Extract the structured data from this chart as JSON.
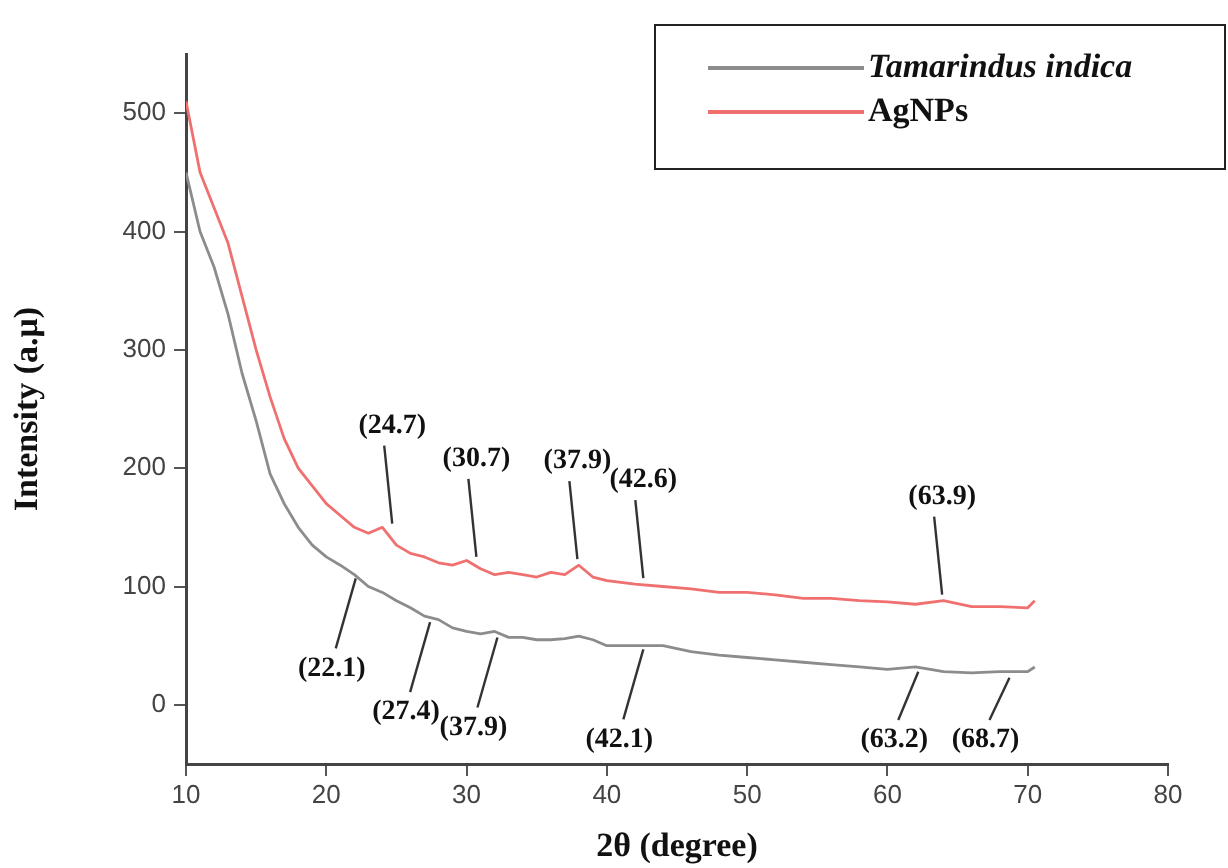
{
  "chart_data": {
    "type": "line",
    "xlabel": "2θ (degree)",
    "ylabel": "Intensity (a.μ)",
    "xlim": [
      10,
      80
    ],
    "xticks": [
      10,
      20,
      30,
      40,
      50,
      60,
      70,
      80
    ],
    "ylim": [
      -50,
      550
    ],
    "yticks": [
      0,
      100,
      200,
      300,
      400,
      500
    ],
    "grid": false,
    "legend": "top right",
    "marker": "none",
    "line_style": "solid",
    "series": [
      {
        "name": "Tamarindus indica",
        "color": "#8c8c8c",
        "x": [
          10,
          11,
          12,
          13,
          14,
          15,
          16,
          17,
          18,
          19,
          20,
          21,
          22,
          23,
          24,
          25,
          26,
          27,
          28,
          29,
          30,
          31,
          32,
          33,
          34,
          35,
          36,
          37,
          38,
          39,
          40,
          42,
          44,
          46,
          48,
          50,
          52,
          54,
          56,
          58,
          60,
          62,
          64,
          66,
          68,
          70,
          70.5
        ],
        "values": [
          450,
          400,
          370,
          330,
          280,
          240,
          195,
          170,
          150,
          135,
          125,
          118,
          110,
          100,
          95,
          88,
          82,
          75,
          72,
          65,
          62,
          60,
          62,
          57,
          57,
          55,
          55,
          56,
          58,
          55,
          50,
          50,
          50,
          45,
          42,
          40,
          38,
          36,
          34,
          32,
          30,
          32,
          28,
          27,
          28,
          28,
          32
        ]
      },
      {
        "name": "AgNPs",
        "color": "#f07070",
        "x": [
          10,
          11,
          12,
          13,
          14,
          15,
          16,
          17,
          18,
          19,
          20,
          21,
          22,
          23,
          24,
          25,
          26,
          27,
          28,
          29,
          30,
          31,
          32,
          33,
          34,
          35,
          36,
          37,
          38,
          39,
          40,
          42,
          44,
          46,
          48,
          50,
          52,
          54,
          56,
          58,
          60,
          62,
          64,
          66,
          68,
          70,
          70.5
        ],
        "values": [
          510,
          450,
          420,
          390,
          345,
          300,
          260,
          225,
          200,
          185,
          170,
          160,
          150,
          145,
          150,
          135,
          128,
          125,
          120,
          118,
          122,
          115,
          110,
          112,
          110,
          108,
          112,
          110,
          118,
          108,
          105,
          102,
          100,
          98,
          95,
          95,
          93,
          90,
          90,
          88,
          87,
          85,
          88,
          83,
          83,
          82,
          88
        ]
      }
    ],
    "annotations": [
      {
        "text": "(24.7)",
        "x": 24.7,
        "y": 148
      },
      {
        "text": "(30.7)",
        "x": 30.7,
        "y": 120
      },
      {
        "text": "(37.9)",
        "x": 37.9,
        "y": 118
      },
      {
        "text": "(42.6)",
        "x": 42.6,
        "y": 102
      },
      {
        "text": "(63.9)",
        "x": 63.9,
        "y": 88
      },
      {
        "text": "(22.1)",
        "x": 22.1,
        "y": 112
      },
      {
        "text": "(27.4)",
        "x": 27.4,
        "y": 75
      },
      {
        "text": "(37.9)",
        "x": 32.2,
        "y": 62
      },
      {
        "text": "(42.1)",
        "x": 42.6,
        "y": 52
      },
      {
        "text": "(63.2)",
        "x": 62.2,
        "y": 33
      },
      {
        "text": "(68.7)",
        "x": 68.7,
        "y": 28
      }
    ]
  }
}
